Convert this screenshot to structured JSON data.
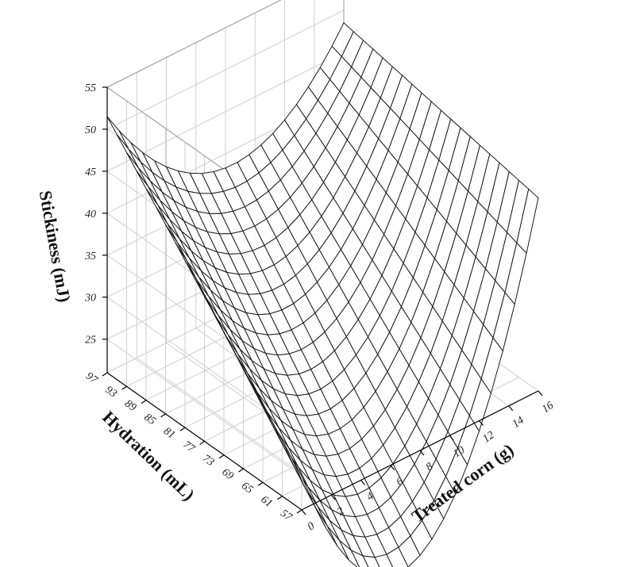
{
  "chart_data": {
    "type": "surface",
    "xlabel": "Treated corn (g)",
    "ylabel": "Hydration (mL)",
    "zlabel": "Stickiness (mJ)",
    "xticks": [
      "0",
      "2",
      "4",
      "6",
      "8",
      "10",
      "12",
      "14",
      "16"
    ],
    "yticks": [
      "57",
      "61",
      "65",
      "69",
      "73",
      "77",
      "81",
      "85",
      "89",
      "93",
      "97"
    ],
    "zticks": [
      "25",
      "30",
      "35",
      "40",
      "45",
      "50",
      "55"
    ],
    "xlim": [
      0,
      16
    ],
    "ylim": [
      57,
      97
    ],
    "zlim": [
      21,
      55
    ],
    "grid": true,
    "surface_grid": {
      "x_steps": 20,
      "y_steps": 20
    },
    "surface_corner_values": {
      "x0_y97": 51.5,
      "x0_y57": 25.0,
      "x16_y57": 44.0,
      "x16_y97": 48.5,
      "minimum_near_x6_y57": 23.0
    }
  }
}
